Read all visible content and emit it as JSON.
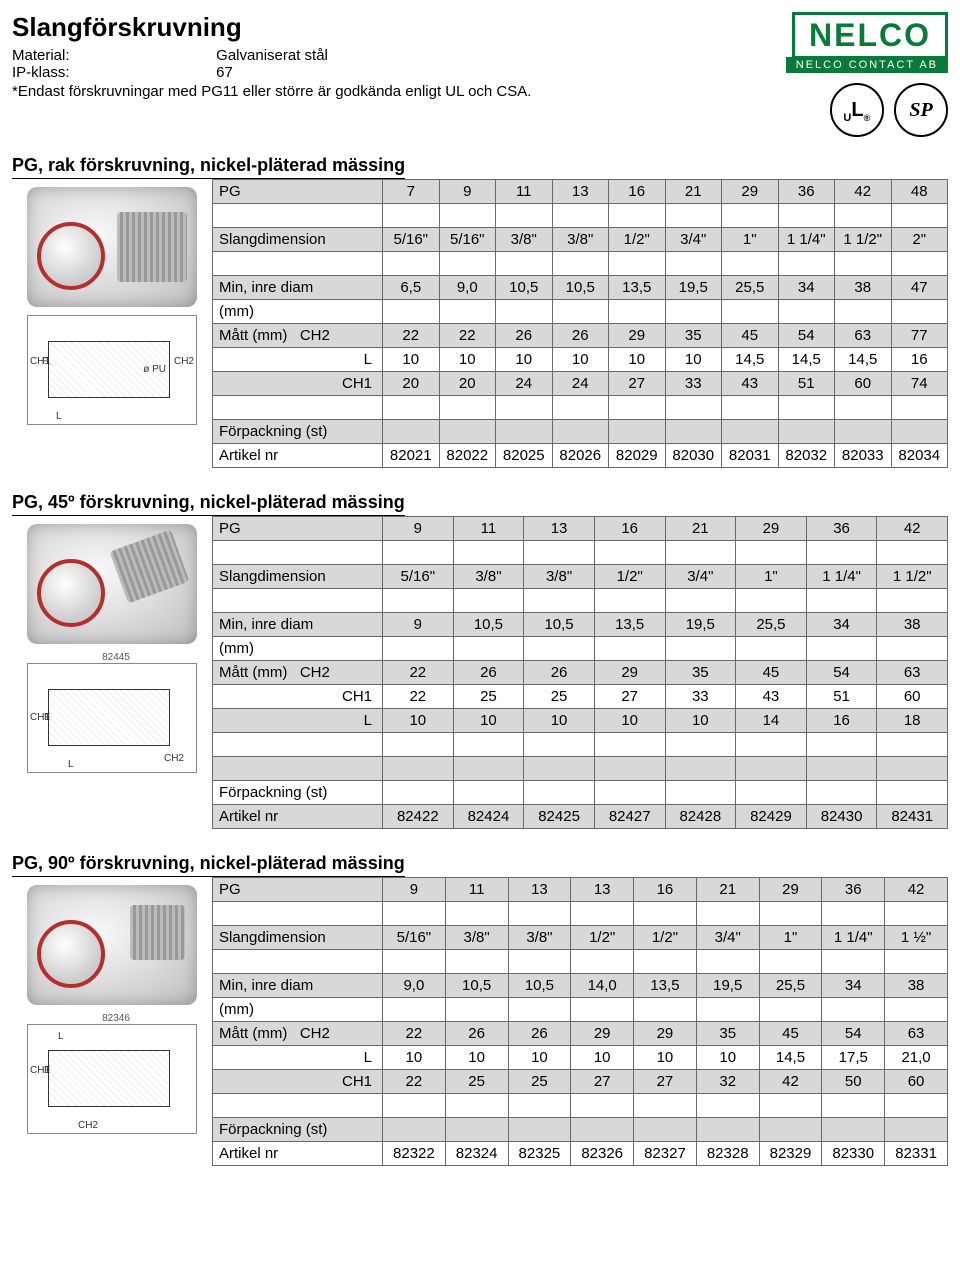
{
  "header": {
    "title": "Slangförskruvning",
    "material_label": "Material:",
    "material_value": "Galvaniserat stål",
    "ip_label": "IP-klass:",
    "ip_value": "67",
    "footnote": "*Endast förskruvningar med PG11 eller större är godkända enligt UL och CSA."
  },
  "logo": {
    "brand": "NELCO",
    "sub": "NELCO CONTACT AB"
  },
  "certs": {
    "ul": "UL",
    "csa": "SP"
  },
  "labels": {
    "pg": "PG",
    "slangdim": "Slangdimension",
    "min_inre": "Min, inre diam",
    "mm": "(mm)",
    "matt": "Mått (mm)",
    "ch2": "CH2",
    "l": "L",
    "ch1": "CH1",
    "forpack": "Förpackning (st)",
    "artikel": "Artikel nr"
  },
  "colors": {
    "shade_bg": "#d8d8d8",
    "border": "#6b6b6b",
    "logo_green": "#0a7a3a"
  },
  "section1": {
    "title": "PG, rak förskruvning, nickel-pläterad mässing",
    "pg": [
      "7",
      "9",
      "11",
      "13",
      "16",
      "21",
      "29",
      "36",
      "42",
      "48"
    ],
    "slangdim": [
      "5/16\"",
      "5/16\"",
      "3/8\"",
      "3/8\"",
      "1/2\"",
      "3/4\"",
      "1\"",
      "1 1/4\"",
      "1 1/2\"",
      "2\""
    ],
    "min_inre": [
      "6,5",
      "9,0",
      "10,5",
      "10,5",
      "13,5",
      "19,5",
      "25,5",
      "34",
      "38",
      "47"
    ],
    "ch2": [
      "22",
      "22",
      "26",
      "26",
      "29",
      "35",
      "45",
      "54",
      "63",
      "77"
    ],
    "l": [
      "10",
      "10",
      "10",
      "10",
      "10",
      "10",
      "14,5",
      "14,5",
      "14,5",
      "16"
    ],
    "ch1": [
      "20",
      "20",
      "24",
      "24",
      "27",
      "33",
      "43",
      "51",
      "60",
      "74"
    ],
    "artikel": [
      "82021",
      "82022",
      "82025",
      "82026",
      "82029",
      "82030",
      "82031",
      "82032",
      "82033",
      "82034"
    ]
  },
  "section2": {
    "title": "PG, 45º förskruvning, nickel-pläterad mässing",
    "photo_id": "82445",
    "pg": [
      "9",
      "11",
      "13",
      "16",
      "21",
      "29",
      "36",
      "42"
    ],
    "slangdim": [
      "5/16\"",
      "3/8\"",
      "3/8\"",
      "1/2\"",
      "3/4\"",
      "1\"",
      "1 1/4\"",
      "1 1/2\""
    ],
    "min_inre": [
      "9",
      "10,5",
      "10,5",
      "13,5",
      "19,5",
      "25,5",
      "34",
      "38"
    ],
    "ch2": [
      "22",
      "26",
      "26",
      "29",
      "35",
      "45",
      "54",
      "63"
    ],
    "ch1": [
      "22",
      "25",
      "25",
      "27",
      "33",
      "43",
      "51",
      "60"
    ],
    "l": [
      "10",
      "10",
      "10",
      "10",
      "10",
      "14",
      "16",
      "18"
    ],
    "artikel": [
      "82422",
      "82424",
      "82425",
      "82427",
      "82428",
      "82429",
      "82430",
      "82431"
    ]
  },
  "section3": {
    "title": "PG, 90º förskruvning, nickel-pläterad mässing",
    "photo_id": "82346",
    "pg": [
      "9",
      "11",
      "13",
      "13",
      "16",
      "21",
      "29",
      "36",
      "42"
    ],
    "slangdim": [
      "5/16\"",
      "3/8\"",
      "3/8\"",
      "1/2\"",
      "1/2\"",
      "3/4\"",
      "1\"",
      "1 1/4\"",
      "1 ½\""
    ],
    "min_inre": [
      "9,0",
      "10,5",
      "10,5",
      "14,0",
      "13,5",
      "19,5",
      "25,5",
      "34",
      "38"
    ],
    "ch2": [
      "22",
      "26",
      "26",
      "29",
      "29",
      "35",
      "45",
      "54",
      "63"
    ],
    "l": [
      "10",
      "10",
      "10",
      "10",
      "10",
      "10",
      "14,5",
      "17,5",
      "21,0"
    ],
    "ch1": [
      "22",
      "25",
      "25",
      "27",
      "27",
      "32",
      "42",
      "50",
      "60"
    ],
    "artikel": [
      "82322",
      "82324",
      "82325",
      "82326",
      "82327",
      "82328",
      "82329",
      "82330",
      "82331"
    ]
  }
}
